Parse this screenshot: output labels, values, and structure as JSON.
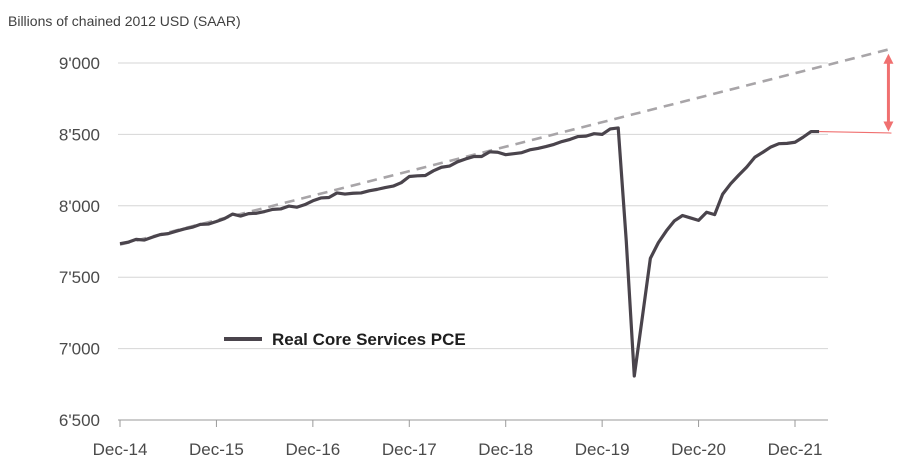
{
  "chart_data": {
    "type": "line",
    "unit_label": "Billions of chained 2012 USD (SAAR)",
    "ylim": [
      6500,
      9000
    ],
    "yticks": [
      6500,
      7000,
      7500,
      8000,
      8500,
      9000
    ],
    "ytick_labels": [
      "6'500",
      "7'000",
      "7'500",
      "8'000",
      "8'500",
      "9'000"
    ],
    "xticks": [
      "2014-12",
      "2015-12",
      "2016-12",
      "2017-12",
      "2018-12",
      "2019-12",
      "2020-12",
      "2021-12"
    ],
    "xtick_labels": [
      "Dec-14",
      "Dec-15",
      "Dec-16",
      "Dec-17",
      "Dec-18",
      "Dec-19",
      "Dec-20",
      "Dec-21"
    ],
    "grid": true,
    "legend_position": "lower-left",
    "series": [
      {
        "name": "Real Core Services PCE",
        "color": "#4a444c",
        "points": [
          [
            "2014-12",
            7735
          ],
          [
            "2015-01",
            7745
          ],
          [
            "2015-02",
            7765
          ],
          [
            "2015-03",
            7760
          ],
          [
            "2015-04",
            7780
          ],
          [
            "2015-05",
            7798
          ],
          [
            "2015-06",
            7805
          ],
          [
            "2015-07",
            7822
          ],
          [
            "2015-08",
            7838
          ],
          [
            "2015-09",
            7850
          ],
          [
            "2015-10",
            7870
          ],
          [
            "2015-11",
            7872
          ],
          [
            "2015-12",
            7890
          ],
          [
            "2016-01",
            7910
          ],
          [
            "2016-02",
            7942
          ],
          [
            "2016-03",
            7928
          ],
          [
            "2016-04",
            7945
          ],
          [
            "2016-05",
            7948
          ],
          [
            "2016-06",
            7960
          ],
          [
            "2016-07",
            7975
          ],
          [
            "2016-08",
            7978
          ],
          [
            "2016-09",
            7998
          ],
          [
            "2016-10",
            7990
          ],
          [
            "2016-11",
            8008
          ],
          [
            "2016-12",
            8035
          ],
          [
            "2017-01",
            8055
          ],
          [
            "2017-02",
            8058
          ],
          [
            "2017-03",
            8090
          ],
          [
            "2017-04",
            8082
          ],
          [
            "2017-05",
            8088
          ],
          [
            "2017-06",
            8090
          ],
          [
            "2017-07",
            8105
          ],
          [
            "2017-08",
            8115
          ],
          [
            "2017-09",
            8128
          ],
          [
            "2017-10",
            8138
          ],
          [
            "2017-11",
            8162
          ],
          [
            "2017-12",
            8205
          ],
          [
            "2018-01",
            8210
          ],
          [
            "2018-02",
            8212
          ],
          [
            "2018-03",
            8245
          ],
          [
            "2018-04",
            8270
          ],
          [
            "2018-05",
            8278
          ],
          [
            "2018-06",
            8308
          ],
          [
            "2018-07",
            8328
          ],
          [
            "2018-08",
            8345
          ],
          [
            "2018-09",
            8345
          ],
          [
            "2018-10",
            8378
          ],
          [
            "2018-11",
            8375
          ],
          [
            "2018-12",
            8358
          ],
          [
            "2019-01",
            8365
          ],
          [
            "2019-02",
            8372
          ],
          [
            "2019-03",
            8392
          ],
          [
            "2019-04",
            8402
          ],
          [
            "2019-05",
            8415
          ],
          [
            "2019-06",
            8430
          ],
          [
            "2019-07",
            8450
          ],
          [
            "2019-08",
            8465
          ],
          [
            "2019-09",
            8485
          ],
          [
            "2019-10",
            8488
          ],
          [
            "2019-11",
            8505
          ],
          [
            "2019-12",
            8500
          ],
          [
            "2020-01",
            8538
          ],
          [
            "2020-02",
            8545
          ],
          [
            "2020-03",
            7755
          ],
          [
            "2020-04",
            6808
          ],
          [
            "2020-05",
            7218
          ],
          [
            "2020-06",
            7632
          ],
          [
            "2020-07",
            7742
          ],
          [
            "2020-08",
            7825
          ],
          [
            "2020-09",
            7895
          ],
          [
            "2020-10",
            7932
          ],
          [
            "2020-11",
            7915
          ],
          [
            "2020-12",
            7898
          ],
          [
            "2021-01",
            7955
          ],
          [
            "2021-02",
            7938
          ],
          [
            "2021-03",
            8082
          ],
          [
            "2021-04",
            8155
          ],
          [
            "2021-05",
            8215
          ],
          [
            "2021-06",
            8272
          ],
          [
            "2021-07",
            8340
          ],
          [
            "2021-08",
            8375
          ],
          [
            "2021-09",
            8412
          ],
          [
            "2021-10",
            8435
          ],
          [
            "2021-11",
            8437
          ],
          [
            "2021-12",
            8445
          ],
          [
            "2022-01",
            8480
          ],
          [
            "2022-02",
            8520
          ],
          [
            "2022-03",
            8520
          ]
        ]
      },
      {
        "name": "",
        "style": "dashed",
        "color": "#a8a5a8",
        "points": [
          [
            "2014-12",
            7728
          ],
          [
            "2022-12",
            9100
          ]
        ]
      }
    ],
    "annotations": [
      {
        "type": "double-arrow",
        "color": "#f07070",
        "x": "2022-12",
        "from": 8520,
        "to": 9065
      },
      {
        "type": "connector",
        "color": "#f07070",
        "from": [
          "2022-03",
          8520
        ],
        "to": [
          "2022-12",
          8510
        ]
      }
    ]
  }
}
